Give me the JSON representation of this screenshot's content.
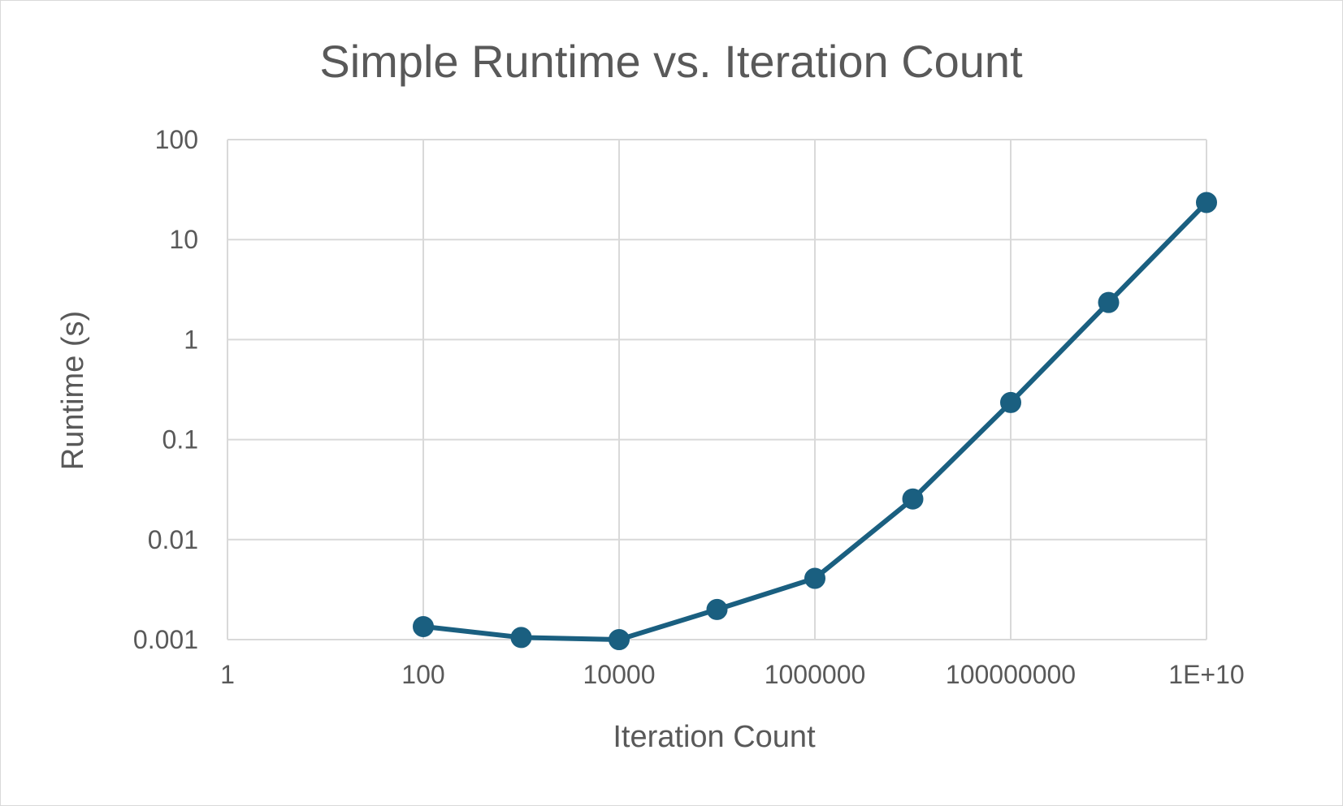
{
  "chart_data": {
    "type": "scatter",
    "title": "Simple Runtime vs. Iteration Count",
    "xlabel": "Iteration Count",
    "ylabel": "Runtime (s)",
    "x_scale": "log10",
    "y_scale": "log10",
    "xlim": [
      1,
      10000000000
    ],
    "ylim": [
      0.001,
      100
    ],
    "x_ticks": [
      1,
      100,
      10000,
      1000000,
      100000000,
      10000000000
    ],
    "x_tick_labels": [
      "1",
      "100",
      "10000",
      "1000000",
      "100000000",
      "1E+10"
    ],
    "y_ticks": [
      0.001,
      0.01,
      0.1,
      1,
      10,
      100
    ],
    "y_tick_labels": [
      "0.001",
      "0.01",
      "0.1",
      "1",
      "10",
      "100"
    ],
    "grid": true,
    "legend": "none",
    "line_color": "#1a5f80",
    "series": [
      {
        "x": [
          100,
          1000,
          10000,
          100000,
          1000000,
          10000000,
          100000000,
          1000000000,
          10000000000
        ],
        "y": [
          0.00135,
          0.00105,
          0.001,
          0.002,
          0.0041,
          0.0255,
          0.235,
          2.35,
          23.5
        ]
      }
    ]
  }
}
